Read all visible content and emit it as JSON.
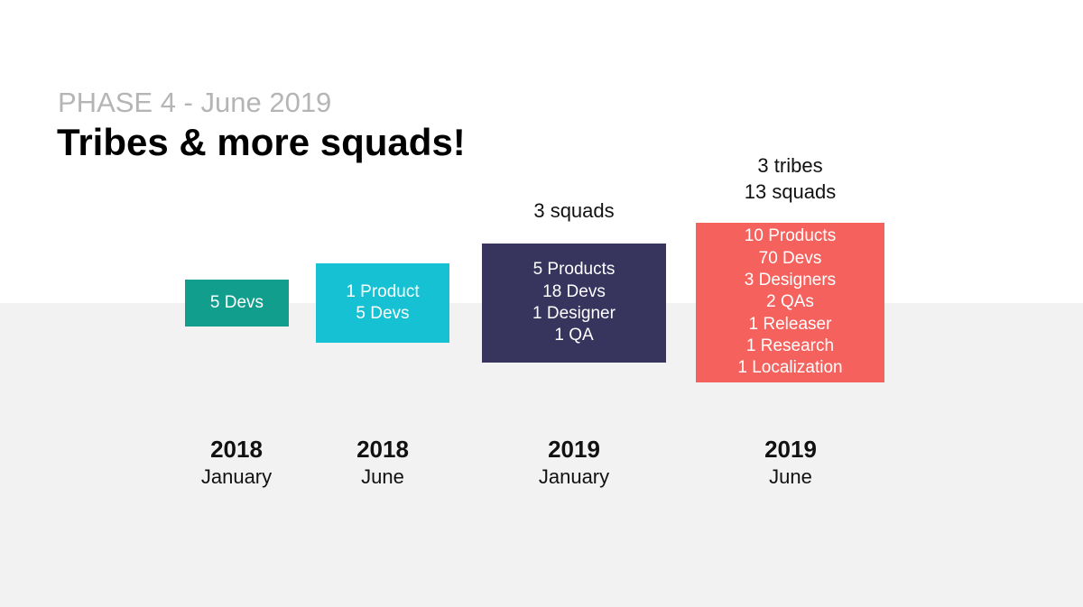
{
  "header": {
    "subtitle": "PHASE 4 - June 2019",
    "title": "Tribes & more squads!"
  },
  "colors": {
    "stage1": "#129e8c",
    "stage2": "#15c1d3",
    "stage3": "#37345d",
    "stage4": "#f5615c",
    "band": "#f2f2f2"
  },
  "stages": [
    {
      "lines": [
        "5 Devs"
      ],
      "caption": [],
      "year": "2018",
      "month": "January"
    },
    {
      "lines": [
        "1 Product",
        "5 Devs"
      ],
      "caption": [],
      "year": "2018",
      "month": "June"
    },
    {
      "lines": [
        "5 Products",
        "18 Devs",
        "1 Designer",
        "1 QA"
      ],
      "caption": [
        "3 squads"
      ],
      "year": "2019",
      "month": "January"
    },
    {
      "lines": [
        "10 Products",
        "70 Devs",
        "3 Designers",
        "2 QAs",
        "1 Releaser",
        "1 Research",
        "1 Localization"
      ],
      "caption": [
        "3 tribes",
        "13 squads"
      ],
      "year": "2019",
      "month": "June"
    }
  ]
}
